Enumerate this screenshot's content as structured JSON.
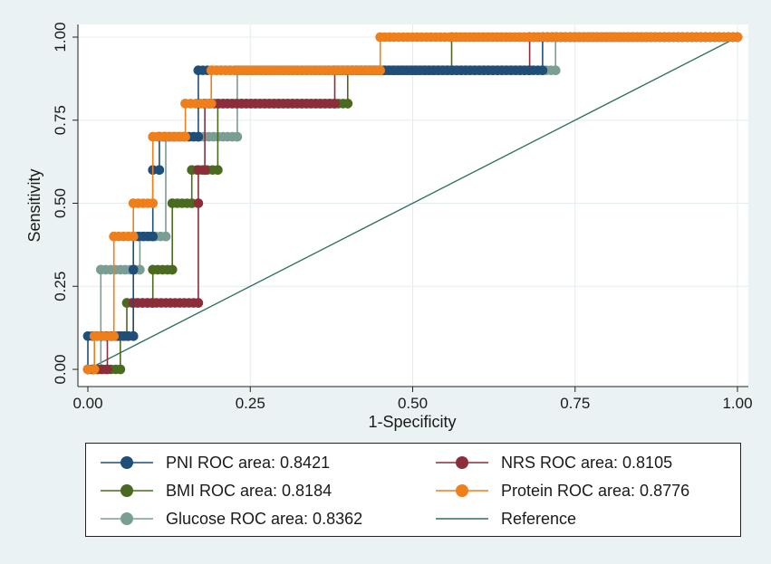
{
  "chart_data": {
    "type": "line",
    "title": "",
    "xlabel": "1-Specificity",
    "ylabel": "Sensitivity",
    "xlim": [
      0,
      1
    ],
    "ylim": [
      0,
      1
    ],
    "xticks": [
      0,
      0.25,
      0.5,
      0.75,
      1
    ],
    "xtick_labels": [
      "0.00",
      "0.25",
      "0.50",
      "0.75",
      "1.00"
    ],
    "yticks": [
      0,
      0.25,
      0.5,
      0.75,
      1
    ],
    "ytick_labels": [
      "0.00",
      "0.25",
      "0.50",
      "0.75",
      "1.00"
    ],
    "grid": true,
    "legend_position": "bottom",
    "series": [
      {
        "name": "PNI ROC area: 0.8421",
        "color": "#1f4e79",
        "points": [
          [
            0,
            0
          ],
          [
            0,
            0.1
          ],
          [
            0.07,
            0.1
          ],
          [
            0.07,
            0.3
          ],
          [
            0.07,
            0.4
          ],
          [
            0.1,
            0.4
          ],
          [
            0.1,
            0.6
          ],
          [
            0.11,
            0.6
          ],
          [
            0.11,
            0.7
          ],
          [
            0.17,
            0.7
          ],
          [
            0.17,
            0.8
          ],
          [
            0.17,
            0.9
          ],
          [
            0.7,
            0.9
          ],
          [
            0.7,
            1
          ],
          [
            1,
            1
          ]
        ]
      },
      {
        "name": "NRS ROC area: 0.8105",
        "color": "#8b2e3a",
        "points": [
          [
            0,
            0
          ],
          [
            0.03,
            0
          ],
          [
            0.03,
            0.1
          ],
          [
            0.07,
            0.1
          ],
          [
            0.07,
            0.2
          ],
          [
            0.17,
            0.2
          ],
          [
            0.17,
            0.5
          ],
          [
            0.17,
            0.6
          ],
          [
            0.18,
            0.6
          ],
          [
            0.18,
            0.8
          ],
          [
            0.38,
            0.8
          ],
          [
            0.38,
            0.9
          ],
          [
            0.68,
            0.9
          ],
          [
            0.68,
            1
          ],
          [
            1,
            1
          ]
        ]
      },
      {
        "name": "BMI ROC area: 0.8184",
        "color": "#4a6b1f",
        "points": [
          [
            0,
            0
          ],
          [
            0.05,
            0
          ],
          [
            0.05,
            0.1
          ],
          [
            0.06,
            0.1
          ],
          [
            0.06,
            0.2
          ],
          [
            0.1,
            0.2
          ],
          [
            0.1,
            0.3
          ],
          [
            0.13,
            0.3
          ],
          [
            0.13,
            0.5
          ],
          [
            0.16,
            0.5
          ],
          [
            0.16,
            0.6
          ],
          [
            0.2,
            0.6
          ],
          [
            0.2,
            0.8
          ],
          [
            0.4,
            0.8
          ],
          [
            0.4,
            0.9
          ],
          [
            0.56,
            0.9
          ],
          [
            0.56,
            1
          ],
          [
            1,
            1
          ]
        ]
      },
      {
        "name": "Protein ROC area: 0.8776",
        "color": "#ef7f1a",
        "points": [
          [
            0,
            0
          ],
          [
            0.01,
            0
          ],
          [
            0.01,
            0.1
          ],
          [
            0.04,
            0.1
          ],
          [
            0.04,
            0.4
          ],
          [
            0.07,
            0.4
          ],
          [
            0.07,
            0.5
          ],
          [
            0.1,
            0.5
          ],
          [
            0.1,
            0.7
          ],
          [
            0.15,
            0.7
          ],
          [
            0.15,
            0.8
          ],
          [
            0.19,
            0.8
          ],
          [
            0.19,
            0.9
          ],
          [
            0.45,
            0.9
          ],
          [
            0.45,
            1
          ],
          [
            0.72,
            1
          ],
          [
            1,
            1
          ]
        ]
      },
      {
        "name": "Glucose ROC area: 0.8362",
        "color": "#7a9d94",
        "points": [
          [
            0,
            0
          ],
          [
            0.02,
            0
          ],
          [
            0.02,
            0.3
          ],
          [
            0.08,
            0.3
          ],
          [
            0.08,
            0.4
          ],
          [
            0.12,
            0.4
          ],
          [
            0.12,
            0.7
          ],
          [
            0.23,
            0.7
          ],
          [
            0.23,
            0.9
          ],
          [
            0.72,
            0.9
          ],
          [
            0.72,
            1
          ],
          [
            1,
            1
          ]
        ]
      },
      {
        "name": "Reference",
        "color": "#2e6f63",
        "points": [
          [
            0,
            0
          ],
          [
            1,
            1
          ]
        ],
        "markers": false
      }
    ]
  }
}
